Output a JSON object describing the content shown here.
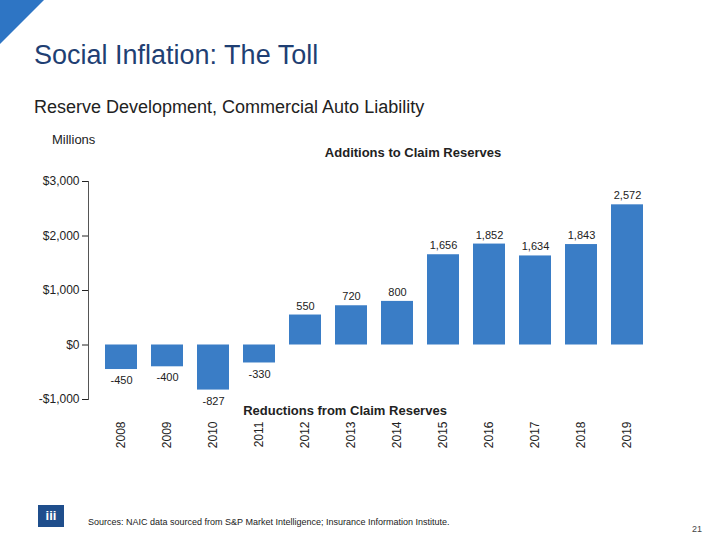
{
  "chart_data": {
    "type": "bar",
    "title": "Social Inflation: The Toll",
    "subtitle": "Reserve Development, Commercial Auto Liability",
    "y_label": "Millions",
    "annotations": [
      "Additions to Claim Reserves",
      "Reductions from Claim Reserves"
    ],
    "categories": [
      "2008",
      "2009",
      "2010",
      "2011",
      "2012",
      "2013",
      "2014",
      "2015",
      "2016",
      "2017",
      "2018",
      "2019"
    ],
    "values": [
      -450,
      -400,
      -827,
      -330,
      550,
      720,
      800,
      1656,
      1852,
      1634,
      1843,
      2572
    ],
    "value_labels": [
      null,
      null,
      "-827",
      null,
      null,
      null,
      null,
      "1,656",
      "1,852",
      "1,634",
      "1,843",
      "2,572"
    ],
    "data_labels": true,
    "color": "#3a7dc6",
    "ylim": [
      -1000,
      3000
    ],
    "yticks": [
      {
        "value": -1000,
        "label": "-$1,000"
      },
      {
        "value": 0,
        "label": "$0"
      },
      {
        "value": 1000,
        "label": "$1,000"
      },
      {
        "value": 2000,
        "label": "$2,000"
      },
      {
        "value": 3000,
        "label": "$3,000"
      }
    ],
    "grid": false,
    "source": "Sources: NAIC data sourced from S&P Market Intelligence; Insurance Information Institute.",
    "logo": "iii",
    "page": "21"
  }
}
